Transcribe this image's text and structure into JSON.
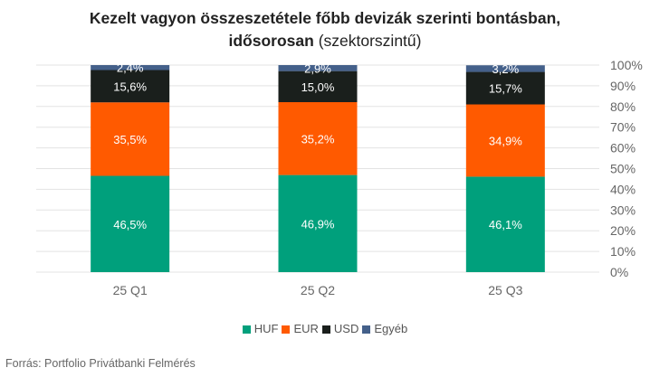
{
  "chart_data": {
    "type": "bar",
    "stacked": true,
    "title_line1": "Kezelt vagyon összeszetétele főbb devizák szerinti bontásban,",
    "title_line2_bold": "idősorosan",
    "title_line2_normal": "(szektorszintű)",
    "categories": [
      "25 Q1",
      "25 Q2",
      "25 Q3"
    ],
    "series": [
      {
        "name": "HUF",
        "color": "#00a07c",
        "values": [
          46.5,
          46.9,
          46.1
        ],
        "labels": [
          "46,5%",
          "46,9%",
          "46,1%"
        ],
        "label_color": "#ffffff"
      },
      {
        "name": "EUR",
        "color": "#ff5a00",
        "values": [
          35.5,
          35.2,
          34.9
        ],
        "labels": [
          "35,5%",
          "35,2%",
          "34,9%"
        ],
        "label_color": "#ffffff"
      },
      {
        "name": "USD",
        "color": "#1a1f1c",
        "values": [
          15.6,
          15.0,
          15.7
        ],
        "labels": [
          "15,6%",
          "15,0%",
          "15,7%"
        ],
        "label_color": "#ffffff"
      },
      {
        "name": "Egyéb",
        "color": "#44608a",
        "values": [
          2.4,
          2.9,
          3.2
        ],
        "labels": [
          "2,4%",
          "2,9%",
          "3,2%"
        ],
        "label_color": "#ffffff"
      }
    ],
    "ylim": [
      0,
      100
    ],
    "y_ticks": [
      "0%",
      "10%",
      "20%",
      "30%",
      "40%",
      "50%",
      "60%",
      "70%",
      "80%",
      "90%",
      "100%"
    ],
    "y_axis_side": "right",
    "legend_position": "bottom",
    "grid": true
  },
  "source": "Forrás: Portfolio Privátbanki Felmérés"
}
